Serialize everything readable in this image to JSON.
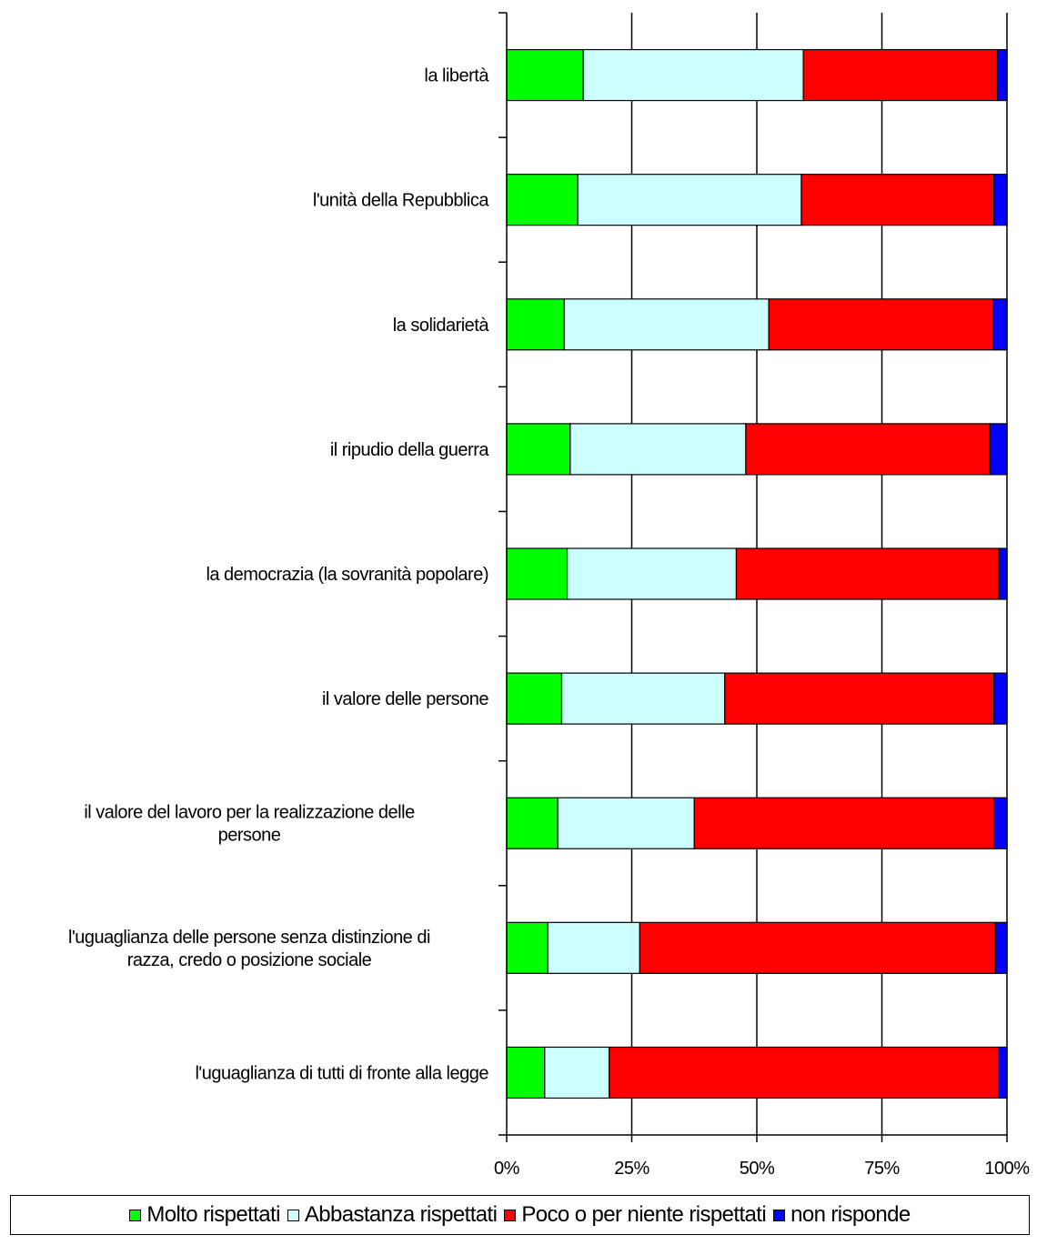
{
  "chart_data": {
    "type": "bar",
    "orientation": "horizontal",
    "stacked": "percent",
    "categories": [
      "la libertà",
      "l'unità della Repubblica",
      "la solidarietà",
      "il ripudio della guerra",
      "la democrazia (la sovranità popolare)",
      "il valore delle persone",
      "il valore del lavoro per la realizzazione delle persone",
      "l'uguaglianza delle persone senza distinzione di razza, credo o posizione sociale",
      "l'uguaglianza di tutti di fronte alla legge"
    ],
    "category_lines": [
      [
        "la libertà"
      ],
      [
        "l'unità della Repubblica"
      ],
      [
        "la solidarietà"
      ],
      [
        "il ripudio della guerra"
      ],
      [
        "la democrazia (la sovranità popolare)"
      ],
      [
        "il valore delle persone"
      ],
      [
        "il valore del lavoro per la realizzazione delle",
        "persone"
      ],
      [
        "l'uguaglianza delle persone senza distinzione di",
        "razza, credo o posizione sociale"
      ],
      [
        "l'uguaglianza di tutti di fronte alla legge"
      ]
    ],
    "series": [
      {
        "name": "Molto rispettati",
        "color": "#00ff00",
        "values": [
          15.3,
          14.2,
          11.5,
          12.7,
          12.1,
          11.0,
          10.2,
          8.2,
          7.6
        ]
      },
      {
        "name": "Abbastanza rispettati",
        "color": "#ccffff",
        "values": [
          44.0,
          44.7,
          40.9,
          35.1,
          33.8,
          32.6,
          27.3,
          18.4,
          12.9
        ]
      },
      {
        "name": "Poco o per niente rispettati",
        "color": "#ff0000",
        "values": [
          38.8,
          38.5,
          44.8,
          48.8,
          52.5,
          53.8,
          60.0,
          71.1,
          77.8
        ]
      },
      {
        "name": "non risponde",
        "color": "#0000ff",
        "values": [
          1.9,
          2.6,
          2.8,
          3.4,
          1.6,
          2.6,
          2.5,
          2.3,
          1.7
        ]
      }
    ],
    "x_ticks": [
      "0%",
      "25%",
      "50%",
      "75%",
      "100%"
    ],
    "xlim": [
      0,
      100
    ],
    "grid": "vertical",
    "legend_position": "bottom"
  }
}
